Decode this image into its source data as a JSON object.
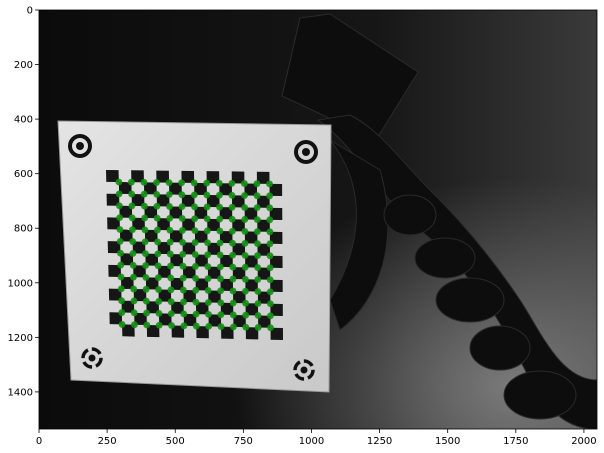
{
  "figure": {
    "image_subject": "calibration-target-photo",
    "x_axis": {
      "ticks": [
        {
          "value": 0,
          "label": "0"
        },
        {
          "value": 250,
          "label": "250"
        },
        {
          "value": 500,
          "label": "500"
        },
        {
          "value": 750,
          "label": "750"
        },
        {
          "value": 1000,
          "label": "1000"
        },
        {
          "value": 1250,
          "label": "1250"
        },
        {
          "value": 1500,
          "label": "1500"
        },
        {
          "value": 1750,
          "label": "1750"
        },
        {
          "value": 2000,
          "label": "2000"
        }
      ],
      "range": [
        0,
        2048
      ]
    },
    "y_axis": {
      "ticks": [
        {
          "value": 0,
          "label": "0"
        },
        {
          "value": 200,
          "label": "200"
        },
        {
          "value": 400,
          "label": "400"
        },
        {
          "value": 600,
          "label": "600"
        },
        {
          "value": 800,
          "label": "800"
        },
        {
          "value": 1000,
          "label": "1000"
        },
        {
          "value": 1200,
          "label": "1200"
        },
        {
          "value": 1400,
          "label": "1400"
        }
      ],
      "range": [
        0,
        1536
      ]
    },
    "colors": {
      "background": "#ffffff",
      "image_dark": "#111111",
      "board": "#d8d8d8",
      "pattern_dark": "#161616",
      "corner_marker": "#0f8f0f"
    }
  }
}
